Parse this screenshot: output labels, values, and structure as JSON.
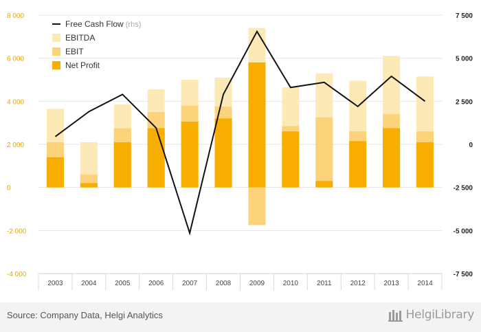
{
  "chart_data": {
    "type": "bar",
    "categories": [
      "2003",
      "2004",
      "2005",
      "2006",
      "2007",
      "2008",
      "2009",
      "2010",
      "2011",
      "2012",
      "2013",
      "2014"
    ],
    "series": [
      {
        "name": "EBITDA",
        "kind": "bar",
        "axis": "left",
        "values": [
          3650,
          2100,
          3850,
          4550,
          5000,
          5100,
          7400,
          4650,
          5300,
          4950,
          6100,
          5150
        ]
      },
      {
        "name": "EBIT",
        "kind": "bar",
        "axis": "left",
        "values": [
          2100,
          600,
          2750,
          3500,
          3800,
          3750,
          -1750,
          2850,
          3250,
          2600,
          3400,
          2600
        ]
      },
      {
        "name": "Net Profit",
        "kind": "bar",
        "axis": "left",
        "values": [
          1400,
          200,
          2100,
          2750,
          3050,
          3200,
          5800,
          2600,
          300,
          2150,
          2750,
          2100
        ]
      },
      {
        "name": "Free Cash Flow",
        "name_suffix": "(rhs)",
        "kind": "line",
        "axis": "right",
        "values": [
          450,
          1900,
          2900,
          950,
          -5150,
          2900,
          6550,
          3300,
          3600,
          2200,
          3950,
          2500
        ]
      }
    ],
    "y_left": {
      "min": -4000,
      "max": 8000,
      "ticks": [
        "-4 000",
        "-2 000",
        "0",
        "2 000",
        "4 000",
        "6 000",
        "8 000"
      ]
    },
    "y_right": {
      "min": -7500,
      "max": 7500,
      "ticks": [
        "-7 500",
        "-5 000",
        "-2 500",
        "0",
        "2 500",
        "5 000",
        "7 500"
      ]
    },
    "grid": true,
    "legend": "top-left",
    "colors": {
      "EBITDA": "#fde9b5",
      "EBIT": "#fcd27a",
      "Net Profit": "#f8ae00",
      "Free Cash Flow": "#111111",
      "left_tick": "#e8a600",
      "right_tick": "#222222"
    }
  },
  "footer": {
    "source": "Source: Company Data, Helgi Analytics",
    "logo": "HelgiLibrary"
  }
}
